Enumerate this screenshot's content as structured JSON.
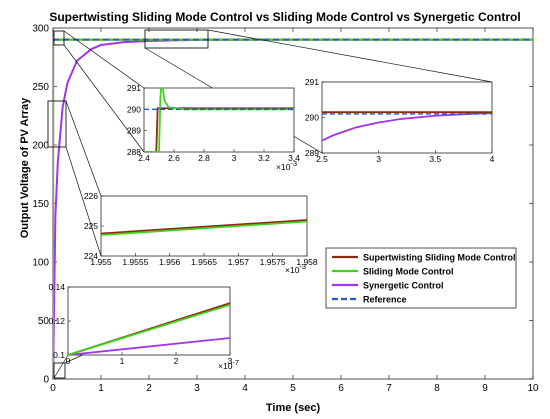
{
  "chart_data": {
    "type": "line",
    "title": "Supertwisting Sliding Mode Control vs Sliding Mode Control vs Synergetic Control",
    "xlabel": "Time (sec)",
    "ylabel": "Output Voltage of PV Array",
    "xlim": [
      0,
      10
    ],
    "ylim": [
      0,
      300
    ],
    "xticks": [
      "0",
      "1",
      "2",
      "3",
      "4",
      "5",
      "6",
      "7",
      "8",
      "9",
      "10"
    ],
    "yticks": [
      "0",
      "50",
      "100",
      "150",
      "200",
      "250"
    ],
    "ytick_top": "300",
    "grid": false,
    "legend_position": "lower-right",
    "colors": {
      "stsmc": "#8b2a10",
      "smc": "#3fd41c",
      "synergetic": "#a235e8",
      "reference": "#2a57c8"
    },
    "series": [
      {
        "name": "Supertwisting Sliding Mode Control",
        "key": "stsmc",
        "x": [
          0,
          0.0024,
          0.0025,
          0.01,
          0.05,
          0.1,
          1,
          5,
          10
        ],
        "y": [
          0,
          290.1,
          290.1,
          290.1,
          290.1,
          290.1,
          290.1,
          290.1,
          290.1
        ]
      },
      {
        "name": "Sliding Mode Control",
        "key": "smc",
        "x": [
          0,
          0.0024,
          0.00253,
          0.00256,
          0.0026,
          0.01,
          0.1,
          1,
          5,
          10
        ],
        "y": [
          0,
          289.5,
          291.4,
          290.2,
          290.0,
          290.0,
          290.0,
          290.0,
          290.0,
          290.0
        ]
      },
      {
        "name": "Synergetic Control",
        "key": "synergetic",
        "x": [
          0,
          0.05,
          0.1,
          0.2,
          0.3,
          0.5,
          0.8,
          1.0,
          1.5,
          2.0,
          2.5,
          3.0,
          3.5,
          4.0,
          5,
          10
        ],
        "y": [
          0,
          140,
          185,
          232,
          253,
          272,
          282,
          285.5,
          288,
          288.9,
          289.4,
          289.8,
          290.0,
          290.1,
          290.1,
          290.1
        ]
      },
      {
        "name": "Reference",
        "key": "reference",
        "dashed": true,
        "x": [
          0,
          10
        ],
        "y": [
          290,
          290
        ]
      }
    ],
    "insets": [
      {
        "id": "inset1",
        "xlim": [
          0.0024,
          0.0035
        ],
        "ylim": [
          288,
          291
        ],
        "xticks": [
          "2.4",
          "2.6",
          "2.8",
          "3",
          "3.2",
          "3.4"
        ],
        "yticks": [
          "288",
          "289",
          "290",
          "291"
        ],
        "xexp": "×10",
        "xexp_power": "-3",
        "series": {
          "stsmc": {
            "x": [
              0.0024,
              0.00249,
              0.0025,
              0.00251,
              0.0035
            ],
            "y": [
              288,
              288,
              290.05,
              290.05,
              290.05
            ]
          },
          "smc": {
            "x": [
              0.0024,
              0.00251,
              0.00252,
              0.00253,
              0.00255,
              0.00258,
              0.0027,
              0.0035
            ],
            "y": [
              288,
              288,
              290.5,
              291.4,
              290.4,
              290.1,
              290.0,
              290.0
            ]
          },
          "reference": {
            "x": [
              0.0024,
              0.0035
            ],
            "y": [
              290.0,
              290.0
            ]
          }
        }
      },
      {
        "id": "inset2",
        "xlim": [
          2.5,
          4
        ],
        "ylim": [
          289,
          291
        ],
        "xticks": [
          "2.5",
          "3",
          "3.5",
          "4"
        ],
        "yticks": [
          "289",
          "290",
          "291"
        ],
        "series": {
          "stsmc": {
            "x": [
              2.5,
              4
            ],
            "y": [
              290.15,
              290.15
            ]
          },
          "synergetic": {
            "x": [
              2.5,
              2.6,
              2.8,
              3.0,
              3.2,
              3.5,
              3.8,
              4.0
            ],
            "y": [
              289.35,
              289.5,
              289.72,
              289.86,
              289.96,
              290.05,
              290.1,
              290.13
            ]
          },
          "reference": {
            "x": [
              2.5,
              4
            ],
            "y": [
              290.1,
              290.1
            ]
          }
        }
      },
      {
        "id": "inset3",
        "xlim": [
          0.001955,
          0.001958
        ],
        "ylim": [
          224,
          226
        ],
        "xticks": [
          "1.955",
          "1.9555",
          "1.956",
          "1.9565",
          "1.957",
          "1.9575",
          "1.958"
        ],
        "yticks": [
          "224",
          "225",
          "226"
        ],
        "xexp": "×10",
        "xexp_power": "-3",
        "series": {
          "stsmc": {
            "x": [
              0.001955,
              0.001958
            ],
            "y": [
              224.75,
              225.2
            ]
          },
          "smc": {
            "x": [
              0.001955,
              0.001958
            ],
            "y": [
              224.7,
              225.15
            ]
          }
        }
      },
      {
        "id": "inset4",
        "xlim": [
          0,
          3e-07
        ],
        "ylim": [
          0.1,
          0.14
        ],
        "xticks": [
          "0",
          "1",
          "2",
          "3"
        ],
        "yticks": [
          "0.1",
          "0.12",
          "0.14"
        ],
        "xexp": "×10",
        "xexp_power": "-7",
        "series": {
          "stsmc": {
            "x": [
              0,
              3e-07
            ],
            "y": [
              0.1,
              0.1305
            ]
          },
          "smc": {
            "x": [
              0,
              3e-07
            ],
            "y": [
              0.1,
              0.1295
            ]
          },
          "synergetic": {
            "x": [
              0,
              3e-07
            ],
            "y": [
              0.1,
              0.11
            ]
          }
        }
      }
    ]
  }
}
